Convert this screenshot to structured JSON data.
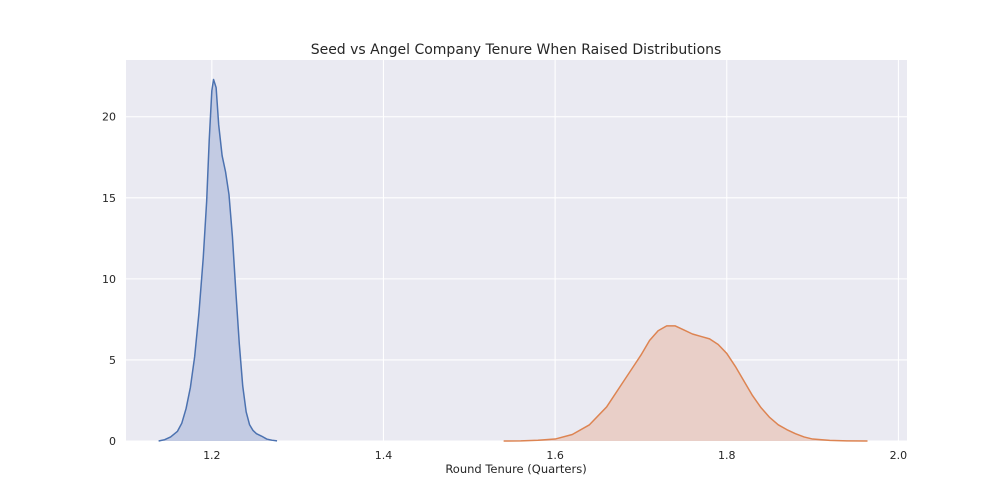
{
  "chart_data": {
    "type": "area",
    "title": "Seed vs Angel Company Tenure When Raised Distributions",
    "xlabel": "Round Tenure (Quarters)",
    "ylabel": "",
    "xlim": [
      1.1,
      2.01
    ],
    "ylim": [
      0,
      23.5
    ],
    "grid": true,
    "legend": "none",
    "xticks": [
      {
        "value": 1.2,
        "label": "1.2"
      },
      {
        "value": 1.4,
        "label": "1.4"
      },
      {
        "value": 1.6,
        "label": "1.6"
      },
      {
        "value": 1.8,
        "label": "1.8"
      },
      {
        "value": 2.0,
        "label": "2.0"
      }
    ],
    "yticks": [
      {
        "value": 0,
        "label": "0"
      },
      {
        "value": 5,
        "label": "5"
      },
      {
        "value": 10,
        "label": "10"
      },
      {
        "value": 15,
        "label": "15"
      },
      {
        "value": 20,
        "label": "20"
      }
    ],
    "series": [
      {
        "color": "#4c72b0",
        "fill": "#c3cbe3",
        "points": [
          [
            1.138,
            0.0
          ],
          [
            1.145,
            0.08
          ],
          [
            1.152,
            0.25
          ],
          [
            1.16,
            0.6
          ],
          [
            1.165,
            1.1
          ],
          [
            1.17,
            2.0
          ],
          [
            1.175,
            3.3
          ],
          [
            1.18,
            5.2
          ],
          [
            1.185,
            7.9
          ],
          [
            1.19,
            11.3
          ],
          [
            1.194,
            14.8
          ],
          [
            1.197,
            18.6
          ],
          [
            1.2,
            21.6
          ],
          [
            1.202,
            22.3
          ],
          [
            1.205,
            21.8
          ],
          [
            1.208,
            19.5
          ],
          [
            1.212,
            17.6
          ],
          [
            1.216,
            16.6
          ],
          [
            1.22,
            15.2
          ],
          [
            1.224,
            12.6
          ],
          [
            1.228,
            9.2
          ],
          [
            1.232,
            6.0
          ],
          [
            1.236,
            3.4
          ],
          [
            1.24,
            1.8
          ],
          [
            1.244,
            1.0
          ],
          [
            1.248,
            0.65
          ],
          [
            1.252,
            0.45
          ],
          [
            1.258,
            0.3
          ],
          [
            1.264,
            0.12
          ],
          [
            1.27,
            0.05
          ],
          [
            1.276,
            0.01
          ]
        ]
      },
      {
        "color": "#dd8452",
        "fill": "#e9cfc8",
        "points": [
          [
            1.54,
            0.0
          ],
          [
            1.56,
            0.01
          ],
          [
            1.58,
            0.05
          ],
          [
            1.6,
            0.12
          ],
          [
            1.62,
            0.4
          ],
          [
            1.64,
            1.0
          ],
          [
            1.66,
            2.1
          ],
          [
            1.68,
            3.7
          ],
          [
            1.7,
            5.3
          ],
          [
            1.71,
            6.2
          ],
          [
            1.72,
            6.8
          ],
          [
            1.73,
            7.1
          ],
          [
            1.74,
            7.1
          ],
          [
            1.75,
            6.85
          ],
          [
            1.76,
            6.6
          ],
          [
            1.77,
            6.45
          ],
          [
            1.78,
            6.3
          ],
          [
            1.79,
            5.95
          ],
          [
            1.8,
            5.4
          ],
          [
            1.81,
            4.6
          ],
          [
            1.82,
            3.7
          ],
          [
            1.83,
            2.8
          ],
          [
            1.84,
            2.05
          ],
          [
            1.85,
            1.45
          ],
          [
            1.86,
            1.0
          ],
          [
            1.87,
            0.7
          ],
          [
            1.88,
            0.45
          ],
          [
            1.89,
            0.25
          ],
          [
            1.9,
            0.12
          ],
          [
            1.92,
            0.04
          ],
          [
            1.94,
            0.01
          ],
          [
            1.964,
            0.0
          ]
        ]
      }
    ]
  }
}
